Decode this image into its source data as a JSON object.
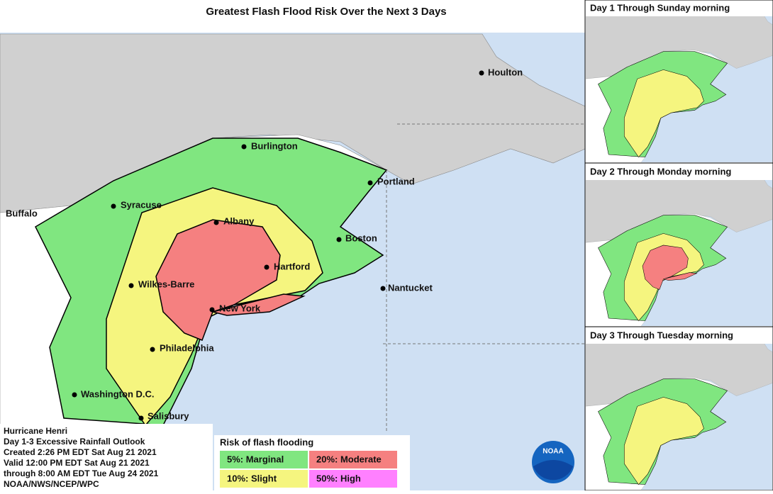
{
  "title": "Greatest Flash Flood Risk Over the Next 3 Days",
  "cities": [
    "Houlton",
    "Burlington",
    "Portland",
    "Syracuse",
    "Buffalo",
    "Albany",
    "Boston",
    "Hartford",
    "Wilkes-Barre",
    "Nantucket",
    "New York",
    "Philadelphia",
    "Washington D.C.",
    "Salisbury"
  ],
  "panels": [
    "Day 1 Through Sunday morning",
    "Day 2 Through Monday morning",
    "Day 3 Through Tuesday morning"
  ],
  "info": [
    "Hurricane Henri",
    "Day 1-3 Excessive Rainfall Outlook",
    "Created 2:26 PM EDT Sat Aug 21 2021",
    "Valid 12:00 PM EDT Sat Aug 21 2021",
    "through 8:00 AM EDT Tue Aug 24 2021",
    "NOAA/NWS/NCEP/WPC"
  ],
  "legend": {
    "title": "Risk of flash flooding",
    "items": [
      {
        "label": "5%: Marginal",
        "color": "#80e680"
      },
      {
        "label": "20%: Moderate",
        "color": "#f58080"
      },
      {
        "label": "10%: Slight",
        "color": "#f5f57f"
      },
      {
        "label": "50%: High",
        "color": "#ff80ff"
      }
    ]
  },
  "logo": "NOAA"
}
